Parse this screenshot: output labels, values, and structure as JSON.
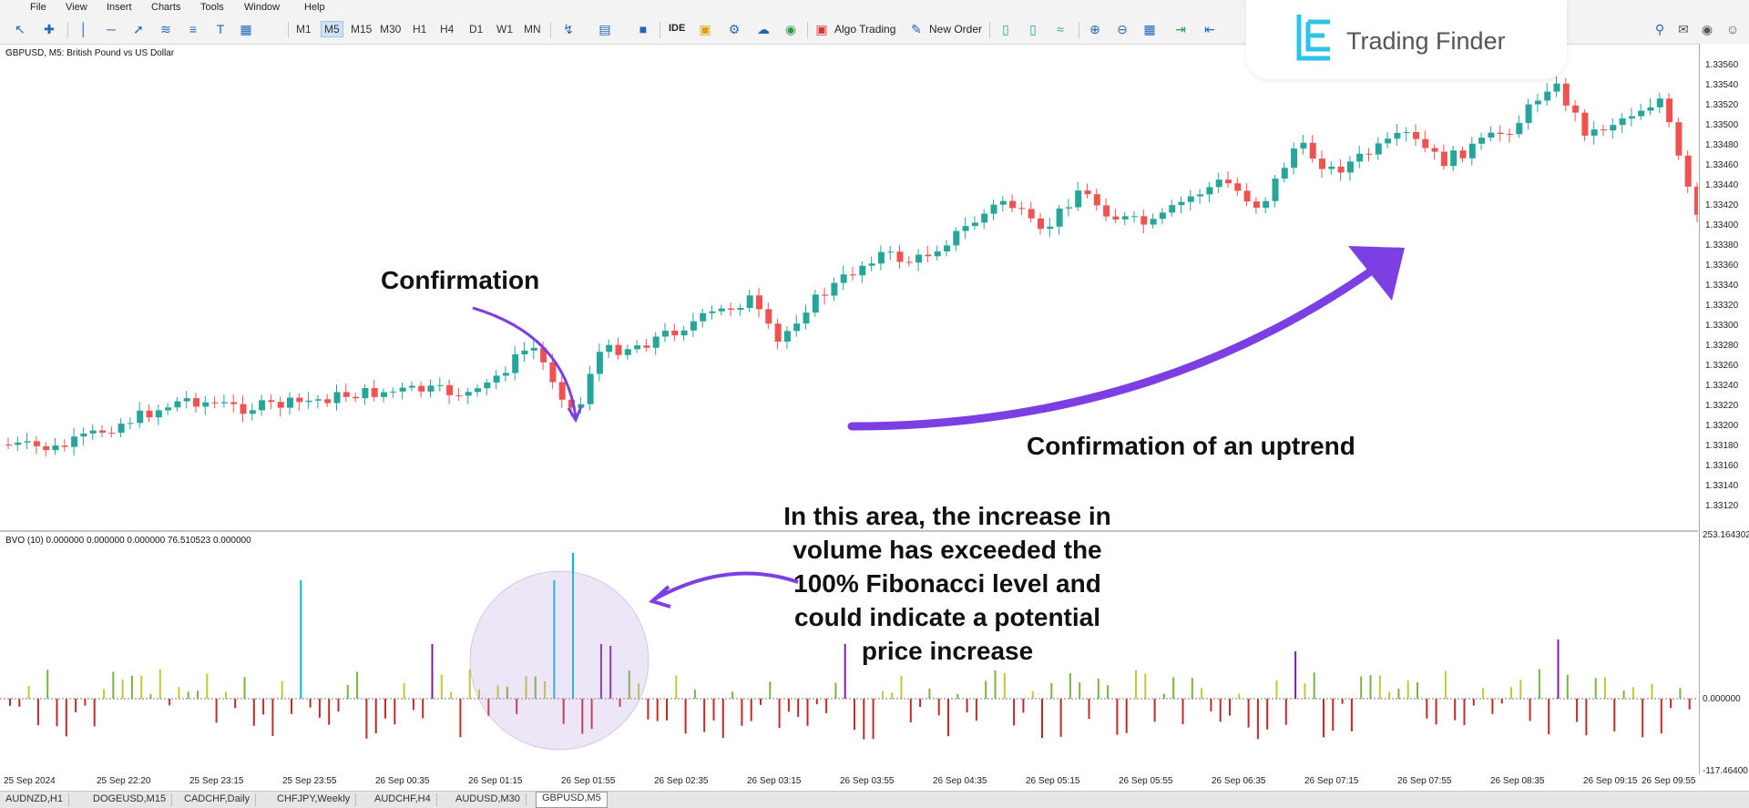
{
  "menu": [
    "File",
    "View",
    "Insert",
    "Charts",
    "Tools",
    "Window",
    "Help"
  ],
  "toolbar": {
    "timeframes": [
      "M1",
      "M5",
      "M15",
      "M30",
      "H1",
      "H4",
      "D1",
      "W1",
      "MN"
    ],
    "active_timeframe": "M5",
    "ide_label": "IDE",
    "algo_trading_label": "Algo Trading",
    "new_order_label": "New Order"
  },
  "brand": {
    "name": "Trading Finder"
  },
  "chart": {
    "symbol_label": "GBPUSD, M5:  British Pound vs US Dollar",
    "indicator_label": "BVO (10) 0.000000 0.000000 0.000000 76.510523 0.000000",
    "colors": {
      "bull": "#26a69a",
      "bear": "#ef5350",
      "annotation": "#7b3fe4"
    }
  },
  "price_axis": [
    "1.33560",
    "1.33540",
    "1.33520",
    "1.33500",
    "1.33480",
    "1.33460",
    "1.33440",
    "1.33420",
    "1.33400",
    "1.33380",
    "1.33360",
    "1.33340",
    "1.33320",
    "1.33300",
    "1.33280",
    "1.33260",
    "1.33240",
    "1.33220",
    "1.33200",
    "1.33180",
    "1.33160",
    "1.33140",
    "1.33120"
  ],
  "volume_axis": [
    "253.164302",
    "0.000000",
    "-117.46400"
  ],
  "time_axis": [
    "25 Sep 2024",
    "25 Sep 22:20",
    "25 Sep 23:15",
    "25 Sep 23:55",
    "26 Sep 00:35",
    "26 Sep 01:15",
    "26 Sep 01:55",
    "26 Sep 02:35",
    "26 Sep 03:15",
    "26 Sep 03:55",
    "26 Sep 04:35",
    "26 Sep 05:15",
    "26 Sep 05:55",
    "26 Sep 06:35",
    "26 Sep 07:15",
    "26 Sep 07:55",
    "26 Sep 08:35",
    "26 Sep 09:15",
    "26 Sep 09:55"
  ],
  "tabs": [
    "AUDNZD,H1",
    "DOGEUSD,M15",
    "CADCHF,Daily",
    "CHFJPY,Weekly",
    "AUDCHF,H4",
    "AUDUSD,M30",
    "GBPUSD,M5"
  ],
  "active_tab": "GBPUSD,M5",
  "annotations": {
    "confirmation": "Confirmation",
    "uptrend": "Confirmation of an uptrend",
    "volume_note": [
      "In this area, the increase in",
      "volume has exceeded the",
      "100% Fibonacci level and",
      "could indicate a potential",
      "price increase"
    ]
  }
}
